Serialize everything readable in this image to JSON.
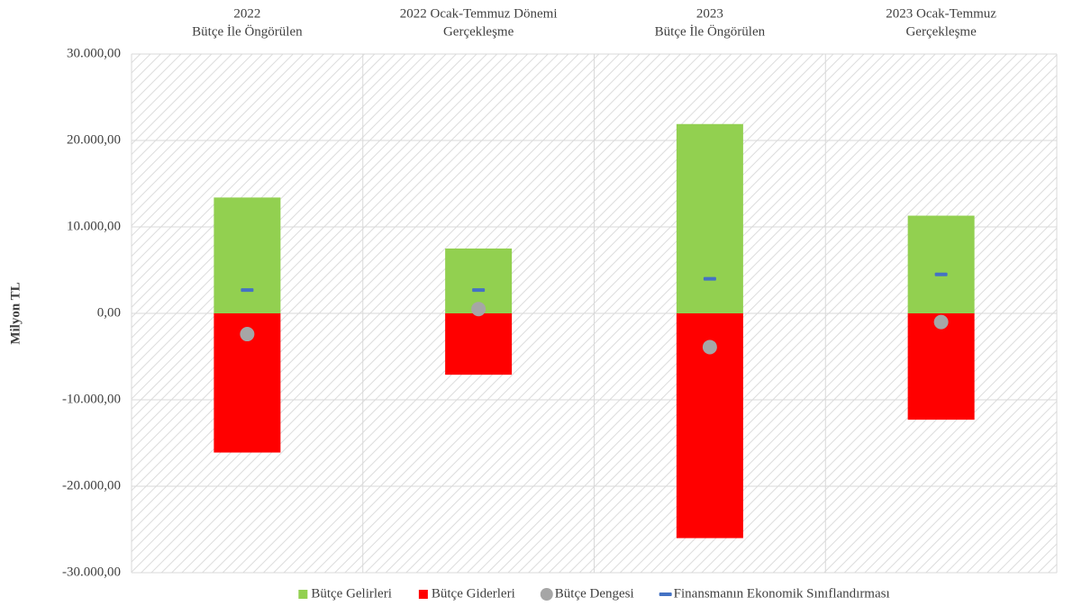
{
  "chart_data": {
    "type": "bar",
    "y_label": "Milyon TL",
    "categories": [
      [
        "2022",
        "Bütçe  İle Öngörülen"
      ],
      [
        "2022 Ocak-Temmuz Dönemi",
        "Gerçekleşme"
      ],
      [
        "2023",
        "Bütçe İle Öngörülen"
      ],
      [
        "2023 Ocak-Temmuz",
        "Gerçekleşme"
      ]
    ],
    "series": [
      {
        "name": "Bütçe Gelirleri",
        "color": "#92d050",
        "marker": "bar",
        "values": [
          13400,
          7500,
          21900,
          11300
        ]
      },
      {
        "name": "Bütçe Giderleri",
        "color": "#ff0000",
        "marker": "bar",
        "values": [
          -16100,
          -7100,
          -26000,
          -12300
        ]
      },
      {
        "name": "Bütçe Dengesi",
        "color": "#a6a6a6",
        "marker": "circle",
        "values": [
          -2400,
          500,
          -3900,
          -1000
        ]
      },
      {
        "name": "Finansmanın Ekonomik Sınıflandırması",
        "color": "#4472c4",
        "marker": "dash",
        "values": [
          2700,
          2700,
          4000,
          4500
        ]
      }
    ],
    "ylim": [
      -30000,
      30000
    ],
    "yticks": [
      {
        "value": -30000,
        "label": "-30.000,00"
      },
      {
        "value": -20000,
        "label": "-20.000,00"
      },
      {
        "value": -10000,
        "label": "-10.000,00"
      },
      {
        "value": 0,
        "label": "0,00"
      },
      {
        "value": 10000,
        "label": "10.000,00"
      },
      {
        "value": 20000,
        "label": "20.000,00"
      },
      {
        "value": 30000,
        "label": "30.000,00"
      }
    ],
    "grid": true,
    "legend": "bottom"
  }
}
